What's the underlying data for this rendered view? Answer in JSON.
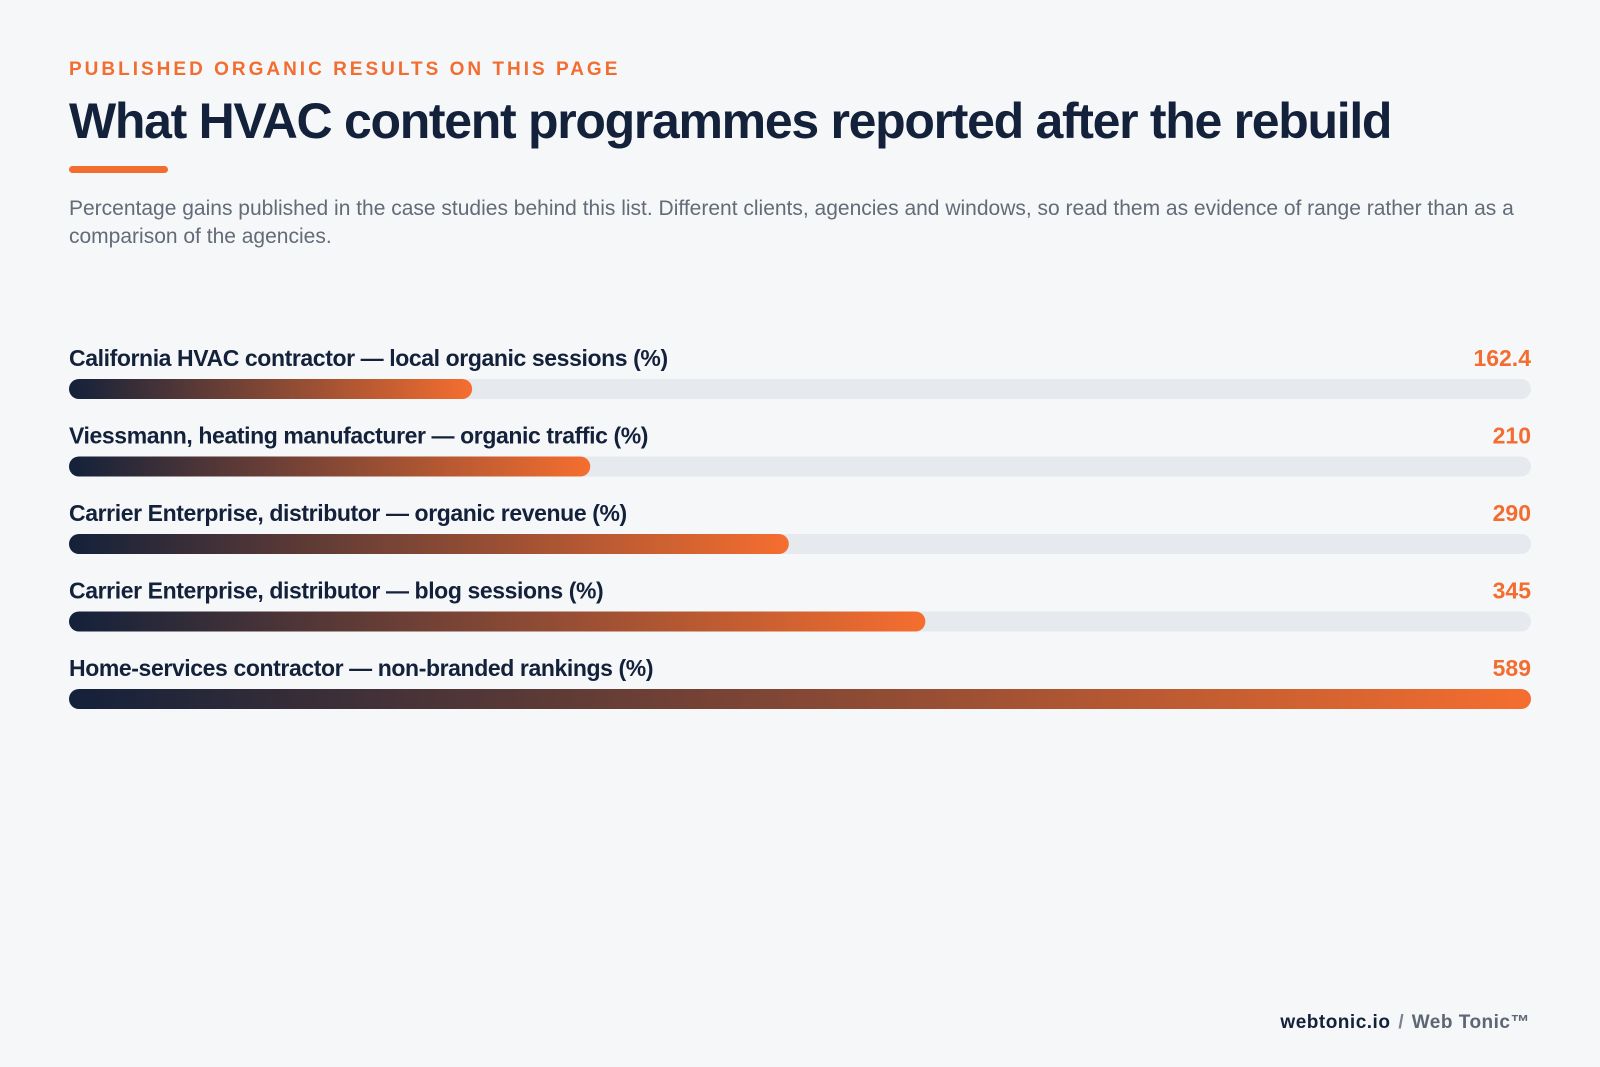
{
  "header": {
    "eyebrow": "PUBLISHED ORGANIC RESULTS ON THIS PAGE",
    "title": "What HVAC content programmes reported after the rebuild",
    "subtitle": "Percentage gains published in the case studies behind this list. Different clients, agencies and windows, so read them as evidence of range rather than as a comparison of the agencies."
  },
  "colors": {
    "background": "#f6f7f9",
    "text": "#13213a",
    "accent": "#f26d2f",
    "track": "#e6e9ed",
    "bar_gradient_start": "#13213a",
    "bar_gradient_end": "#f56e2f"
  },
  "chart_data": {
    "type": "bar",
    "orientation": "horizontal",
    "categories": [
      "California HVAC contractor — local organic sessions (%)",
      "Viessmann, heating manufacturer — organic traffic (%)",
      "Carrier Enterprise, distributor — organic revenue (%)",
      "Carrier Enterprise, distributor — blog sessions (%)",
      "Home-services contractor — non-branded rankings (%)"
    ],
    "value_labels": [
      "162.4",
      "210",
      "290",
      "345",
      "589"
    ],
    "values": [
      162.4,
      210,
      290,
      345,
      589
    ],
    "xlim": [
      0,
      589
    ],
    "grid": false
  },
  "footer": {
    "domain": "webtonic.io",
    "separator": "/",
    "brand": "Web Tonic™"
  }
}
